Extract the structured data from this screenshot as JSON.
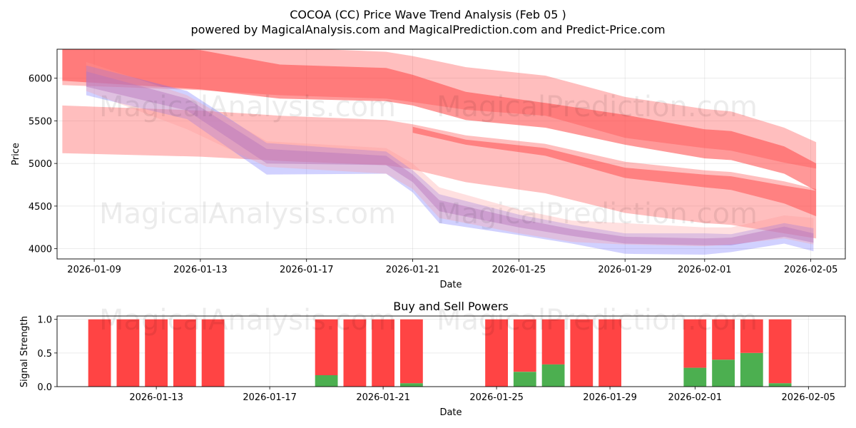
{
  "title_line1": "COCOA (CC) Price Wave Trend Analysis (Feb 05 )",
  "title_line2": "powered by MagicalAnalysis.com and MagicalPrediction.com and Predict-Price.com",
  "watermarks": [
    "MagicalAnalysis.com",
    "MagicalPrediction.com"
  ],
  "colors": {
    "red": "#ff4444",
    "green": "#4caf50",
    "blue": "#6666ff",
    "pink": "#ff9999",
    "purple": "#9966cc"
  },
  "chart_data": [
    {
      "type": "area",
      "title": "",
      "xlabel": "Date",
      "ylabel": "Price",
      "xlim": [
        "2026-01-07.6",
        "2026-02-06.3"
      ],
      "ylim": [
        3880,
        6340
      ],
      "grid": true,
      "x_ticks": [
        "2026-01-09",
        "2026-01-13",
        "2026-01-17",
        "2026-01-21",
        "2026-01-25",
        "2026-01-29",
        "2026-02-01",
        "2026-02-05"
      ],
      "y_ticks": [
        4000,
        4500,
        5000,
        5500,
        6000
      ],
      "series": [
        {
          "name": "red-upper-band",
          "color": "#ff4444",
          "opacity": 0.35,
          "x": [
            "2026-01-07.8",
            "2026-01-13",
            "2026-01-16",
            "2026-01-20",
            "2026-01-21",
            "2026-01-23",
            "2026-01-26",
            "2026-01-29",
            "2026-02-01",
            "2026-02-02",
            "2026-02-04",
            "2026-02-05.2"
          ],
          "upper": [
            6480,
            6420,
            6360,
            6310,
            6260,
            6130,
            6030,
            5780,
            5640,
            5610,
            5420,
            5250
          ],
          "lower": [
            5920,
            5860,
            5800,
            5760,
            5720,
            5630,
            5560,
            5300,
            5180,
            5150,
            5010,
            4940
          ]
        },
        {
          "name": "red-upper-core",
          "color": "#ff4444",
          "opacity": 0.55,
          "x": [
            "2026-01-07.8",
            "2026-01-13",
            "2026-01-16",
            "2026-01-20",
            "2026-01-21",
            "2026-01-23",
            "2026-01-26",
            "2026-01-29",
            "2026-02-01",
            "2026-02-02",
            "2026-02-04",
            "2026-02-05.2"
          ],
          "upper": [
            6440,
            6330,
            6160,
            6120,
            6040,
            5840,
            5710,
            5570,
            5400,
            5380,
            5200,
            5000
          ],
          "lower": [
            5970,
            5870,
            5760,
            5730,
            5680,
            5510,
            5420,
            5220,
            5060,
            5040,
            4880,
            4680
          ]
        },
        {
          "name": "red-lower-band",
          "color": "#ff4444",
          "opacity": 0.35,
          "x": [
            "2026-01-07.8",
            "2026-01-13",
            "2026-01-16",
            "2026-01-20",
            "2026-01-21",
            "2026-01-23",
            "2026-01-26",
            "2026-01-29",
            "2026-02-01",
            "2026-02-02",
            "2026-02-04",
            "2026-02-05.2"
          ],
          "upper": [
            5680,
            5620,
            5560,
            5510,
            5460,
            5330,
            5230,
            5020,
            4920,
            4900,
            4790,
            4700
          ],
          "lower": [
            5120,
            5080,
            5030,
            4980,
            4930,
            4780,
            4650,
            4420,
            4300,
            4280,
            4180,
            4120
          ]
        },
        {
          "name": "red-lower-core",
          "color": "#ff4444",
          "opacity": 0.5,
          "x": [
            "2026-01-21",
            "2026-01-23",
            "2026-01-26",
            "2026-01-29",
            "2026-02-01",
            "2026-02-02",
            "2026-02-04",
            "2026-02-05.2"
          ],
          "upper": [
            5430,
            5280,
            5180,
            4950,
            4870,
            4850,
            4740,
            4680
          ],
          "lower": [
            5360,
            5220,
            5090,
            4830,
            4720,
            4690,
            4530,
            4380
          ]
        },
        {
          "name": "blue-price-band",
          "color": "#6666ff",
          "opacity": 0.3,
          "x": [
            "2026-01-08.7",
            "2026-01-12.5",
            "2026-01-15.5",
            "2026-01-20",
            "2026-01-21",
            "2026-01-22",
            "2026-01-25",
            "2026-01-27",
            "2026-01-29",
            "2026-02-01",
            "2026-02-02",
            "2026-02-04",
            "2026-02-05.1"
          ],
          "upper": [
            6150,
            5850,
            5240,
            5140,
            4920,
            4640,
            4400,
            4280,
            4180,
            4180,
            4170,
            4300,
            4240
          ],
          "lower": [
            5800,
            5520,
            4870,
            4880,
            4660,
            4300,
            4160,
            4060,
            3940,
            3930,
            3960,
            4060,
            3970
          ]
        },
        {
          "name": "purple-price-core",
          "color": "#9966cc",
          "opacity": 0.45,
          "x": [
            "2026-01-08.7",
            "2026-01-12.5",
            "2026-01-15.5",
            "2026-01-20",
            "2026-01-21",
            "2026-01-22",
            "2026-01-25",
            "2026-01-27",
            "2026-01-29",
            "2026-02-01",
            "2026-02-02",
            "2026-02-04",
            "2026-02-05.1"
          ],
          "upper": [
            6080,
            5760,
            5170,
            5090,
            4870,
            4570,
            4350,
            4230,
            4140,
            4120,
            4130,
            4260,
            4180
          ],
          "lower": [
            5900,
            5620,
            5000,
            4980,
            4780,
            4440,
            4250,
            4150,
            4060,
            4040,
            4040,
            4140,
            4070
          ]
        },
        {
          "name": "pink-price-band",
          "color": "#ff9999",
          "opacity": 0.3,
          "x": [
            "2026-01-08.7",
            "2026-01-12.5",
            "2026-01-15.5",
            "2026-01-20",
            "2026-01-21",
            "2026-01-22",
            "2026-01-25",
            "2026-01-27",
            "2026-01-29",
            "2026-02-01",
            "2026-02-02",
            "2026-02-04",
            "2026-02-05.1"
          ],
          "upper": [
            6190,
            5800,
            5260,
            5180,
            5000,
            4720,
            4460,
            4330,
            4300,
            4250,
            4250,
            4390,
            4360
          ],
          "lower": [
            5850,
            5400,
            4960,
            4880,
            4700,
            4360,
            4180,
            4080,
            4050,
            4030,
            4050,
            4120,
            4050
          ]
        }
      ]
    },
    {
      "type": "bar",
      "title": "Buy and Sell Powers",
      "xlabel": "Date",
      "ylabel": "Signal Strength",
      "ylim": [
        0,
        1.05
      ],
      "grid": true,
      "x_ticks": [
        "2026-01-13",
        "2026-01-17",
        "2026-01-21",
        "2026-01-25",
        "2026-01-29",
        "2026-02-01",
        "2026-02-05"
      ],
      "y_ticks": [
        "0.0",
        "0.5",
        "1.0"
      ],
      "xlim": [
        "2026-01-09.5",
        "2026-02-06.3"
      ],
      "series": [
        {
          "name": "Buy",
          "color": "#4caf50"
        },
        {
          "name": "Sell",
          "color": "#ff4444"
        }
      ],
      "bars": [
        {
          "date": "2026-01-11",
          "buy": 0.0
        },
        {
          "date": "2026-01-12",
          "buy": 0.0
        },
        {
          "date": "2026-01-13",
          "buy": 0.0
        },
        {
          "date": "2026-01-14",
          "buy": 0.0
        },
        {
          "date": "2026-01-15",
          "buy": 0.0
        },
        {
          "date": "2026-01-19",
          "buy": 0.17
        },
        {
          "date": "2026-01-20",
          "buy": 0.0
        },
        {
          "date": "2026-01-21",
          "buy": 0.0
        },
        {
          "date": "2026-01-22",
          "buy": 0.05
        },
        {
          "date": "2026-01-25",
          "buy": 0.0
        },
        {
          "date": "2026-01-26",
          "buy": 0.22
        },
        {
          "date": "2026-01-27",
          "buy": 0.33
        },
        {
          "date": "2026-01-28",
          "buy": 0.0
        },
        {
          "date": "2026-01-29",
          "buy": 0.0
        },
        {
          "date": "2026-02-01",
          "buy": 0.28
        },
        {
          "date": "2026-02-02",
          "buy": 0.4
        },
        {
          "date": "2026-02-03",
          "buy": 0.5
        },
        {
          "date": "2026-02-04",
          "buy": 0.05
        }
      ]
    }
  ]
}
